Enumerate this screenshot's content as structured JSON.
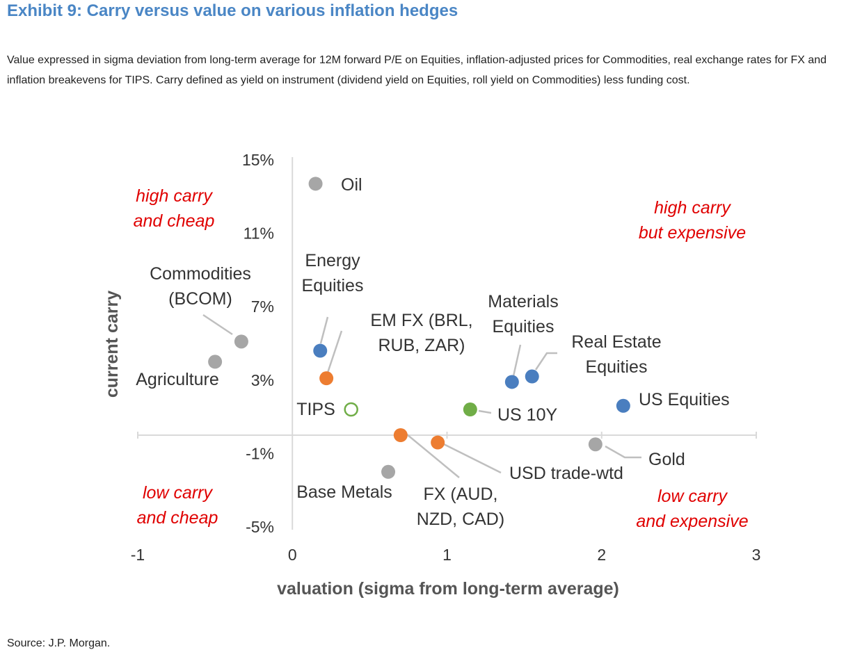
{
  "title": "Exhibit 9: Carry versus value on various inflation hedges",
  "subtitle": "Value expressed in sigma deviation from long-term average for 12M forward P/E on Equities, inflation-adjusted prices for Commodities, real exchange rates for FX and inflation breakevens for TIPS. Carry defined as yield on instrument (dividend yield on Equities, roll yield on Commodities) less funding cost.",
  "source": "Source: J.P. Morgan.",
  "colors": {
    "title": "#4a86c5",
    "equities": "#4a7ebf",
    "fx": "#ed7d31",
    "rates": "#70ad47",
    "commodities": "#a6a6a6",
    "quadrant": "#e00000"
  },
  "chart_data": {
    "type": "scatter",
    "xlabel": "valuation (sigma from long-term average)",
    "ylabel": "current carry",
    "xlim": [
      -1,
      3
    ],
    "ylim": [
      -5,
      15
    ],
    "x_ticks": [
      "-1",
      "0",
      "1",
      "2",
      "3"
    ],
    "y_ticks": [
      "15%",
      "11%",
      "7%",
      "3%",
      "-1%",
      "-5%"
    ],
    "quadrant_labels": {
      "top_left": [
        "high carry",
        "and cheap"
      ],
      "top_right": [
        "high carry",
        "but expensive"
      ],
      "bottom_left": [
        "low carry",
        "and cheap"
      ],
      "bottom_right": [
        "low carry",
        "and expensive"
      ]
    },
    "points": [
      {
        "label": [
          "Oil"
        ],
        "x": 0.15,
        "y": 13.7,
        "color": "#a6a6a6",
        "hollow": false
      },
      {
        "label": [
          "Commodities",
          "(BCOM)"
        ],
        "x": -0.33,
        "y": 5.1,
        "color": "#a6a6a6",
        "hollow": false
      },
      {
        "label": [
          "Agriculture"
        ],
        "x": -0.5,
        "y": 4.0,
        "color": "#a6a6a6",
        "hollow": false
      },
      {
        "label": [
          "Energy",
          "Equities"
        ],
        "x": 0.18,
        "y": 4.6,
        "color": "#4a7ebf",
        "hollow": false
      },
      {
        "label": [
          "EM FX (BRL,",
          "RUB, ZAR)"
        ],
        "x": 0.22,
        "y": 3.1,
        "color": "#ed7d31",
        "hollow": false
      },
      {
        "label": [
          "TIPS"
        ],
        "x": 0.38,
        "y": 1.4,
        "color": "#70ad47",
        "hollow": true
      },
      {
        "label": [
          "US 10Y"
        ],
        "x": 1.15,
        "y": 1.4,
        "color": "#70ad47",
        "hollow": false
      },
      {
        "label": [
          "Materials",
          "Equities"
        ],
        "x": 1.42,
        "y": 2.9,
        "color": "#4a7ebf",
        "hollow": false
      },
      {
        "label": [
          "Real Estate",
          "Equities"
        ],
        "x": 1.55,
        "y": 3.2,
        "color": "#4a7ebf",
        "hollow": false
      },
      {
        "label": [
          "US Equities"
        ],
        "x": 2.14,
        "y": 1.6,
        "color": "#4a7ebf",
        "hollow": false
      },
      {
        "label": [
          "FX (AUD,",
          "NZD, CAD)"
        ],
        "x": 0.7,
        "y": 0.0,
        "color": "#ed7d31",
        "hollow": false
      },
      {
        "label": [
          "USD trade-wtd"
        ],
        "x": 0.94,
        "y": -0.4,
        "color": "#ed7d31",
        "hollow": false
      },
      {
        "label": [
          "Base Metals"
        ],
        "x": 0.62,
        "y": -2.0,
        "color": "#a6a6a6",
        "hollow": false
      },
      {
        "label": [
          "Gold"
        ],
        "x": 1.96,
        "y": -0.5,
        "color": "#a6a6a6",
        "hollow": false
      }
    ]
  }
}
